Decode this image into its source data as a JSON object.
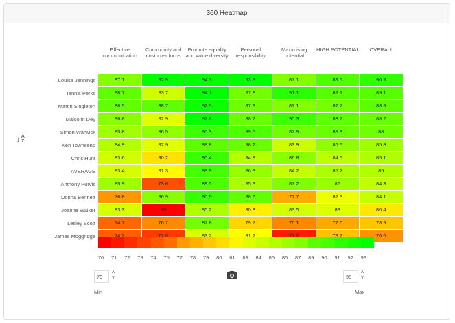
{
  "title": "360 Heatmap",
  "chart_data": {
    "type": "heatmap",
    "columns": [
      "Effective communication",
      "Community and customer focus",
      "Promote equality and value diversity",
      "Personal responsibility",
      "Maximising potential",
      "HIGH POTENTIAL",
      "OVERALL"
    ],
    "rows": [
      "Louisa Jennings",
      "Tannis Perks",
      "Martin Singleton",
      "Malcolm Dey",
      "Simon Warwick",
      "Ken Townsend",
      "Chris Hunt",
      "AVERAGE",
      "Anthony Purvis",
      "Donna Bennett",
      "Joanne Walker",
      "Lesley Scott",
      "James Moggridge"
    ],
    "values": [
      [
        87.1,
        92.9,
        94.3,
        93.3,
        87.1,
        89.5,
        90.9
      ],
      [
        88.7,
        83.7,
        94.1,
        87.8,
        91.1,
        89.1,
        89.1
      ],
      [
        88.5,
        88.7,
        92.5,
        87.9,
        87.1,
        87.7,
        88.9
      ],
      [
        86.8,
        82.9,
        92.8,
        88.2,
        90.3,
        88.7,
        88.2
      ],
      [
        85.8,
        86.5,
        90.3,
        89.5,
        87.9,
        88.3,
        88
      ],
      [
        84.9,
        82.9,
        88.8,
        88.2,
        83.9,
        86.6,
        85.8
      ],
      [
        83.6,
        80.2,
        90.4,
        84.8,
        86.8,
        84.5,
        85.1
      ],
      [
        83.4,
        81.3,
        89.9,
        86.3,
        84.2,
        85.2,
        85
      ],
      [
        85.9,
        73.6,
        89.5,
        85.3,
        87.2,
        86,
        84.3
      ],
      [
        76.8,
        86.9,
        90.5,
        88.6,
        77.7,
        82.3,
        84.1
      ],
      [
        83.3,
        69,
        85.2,
        80.8,
        83.5,
        83,
        80.4
      ],
      [
        74.7,
        76.2,
        87.8,
        79.7,
        76.1,
        77.6,
        78.9
      ],
      [
        74.3,
        72.6,
        83.2,
        81.7,
        71.2,
        78.7,
        76.6
      ]
    ],
    "color_scale": {
      "low": "#ff0000",
      "mid": "#ffff00",
      "high": "#00ff00"
    },
    "legend_ticks": [
      "70",
      "71",
      "72",
      "73",
      "74",
      "75",
      "77",
      "78",
      "79",
      "80",
      "81",
      "83",
      "84",
      "85",
      "86",
      "87",
      "89",
      "90",
      "91",
      "92",
      "93"
    ]
  },
  "controls": {
    "min_value": "70",
    "max_value": "95",
    "min_label": "Min",
    "max_label": "Max",
    "sort_icon": "sort-alpha-icon",
    "camera_icon": "camera-icon"
  }
}
